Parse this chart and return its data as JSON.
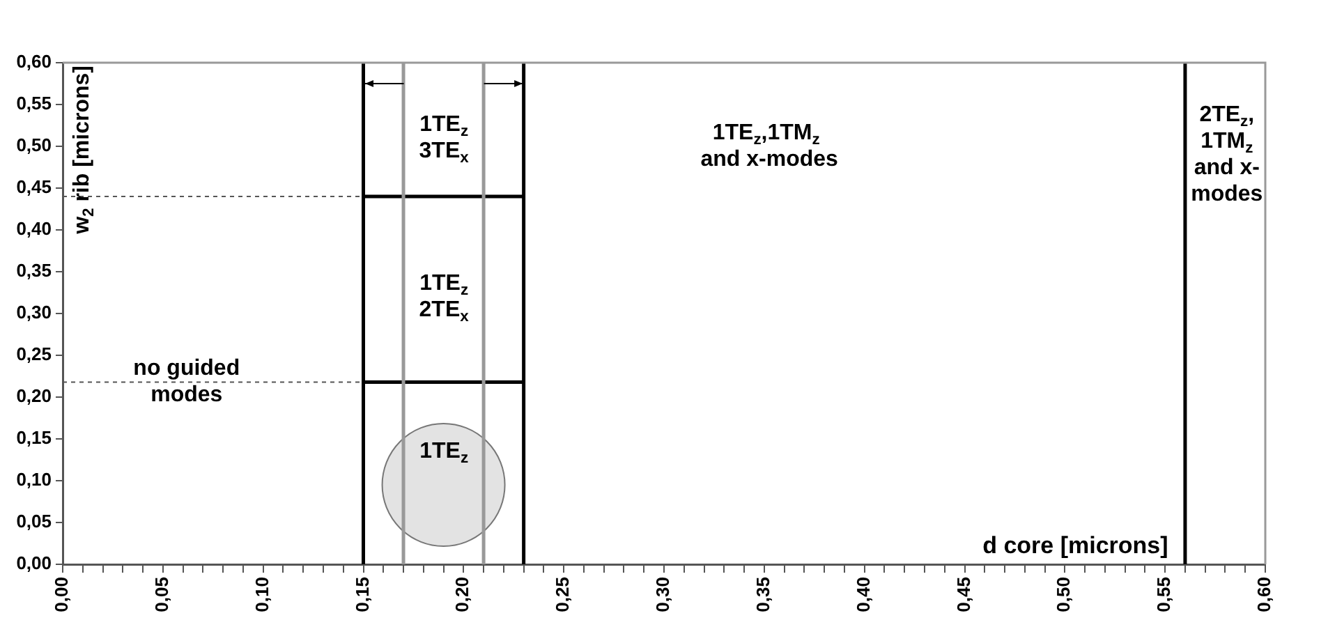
{
  "chart_data": {
    "type": "line",
    "xlabel": "d core [microns]",
    "ylabel": "w$_{2}$ rib [microns]",
    "xlim": [
      0,
      0.6
    ],
    "ylim": [
      0,
      0.6
    ],
    "xticks": [
      {
        "value": 0,
        "label": "0,00"
      },
      {
        "value": 0.01,
        "label": null
      },
      {
        "value": 0.02,
        "label": null
      },
      {
        "value": 0.03,
        "label": null
      },
      {
        "value": 0.04,
        "label": null
      },
      {
        "value": 0.05,
        "label": "0,05"
      },
      {
        "value": 0.06,
        "label": null
      },
      {
        "value": 0.07,
        "label": null
      },
      {
        "value": 0.08,
        "label": null
      },
      {
        "value": 0.09,
        "label": null
      },
      {
        "value": 0.1,
        "label": "0,10"
      },
      {
        "value": 0.11,
        "label": null
      },
      {
        "value": 0.12,
        "label": null
      },
      {
        "value": 0.13,
        "label": null
      },
      {
        "value": 0.14,
        "label": null
      },
      {
        "value": 0.15,
        "label": "0,15"
      },
      {
        "value": 0.16,
        "label": null
      },
      {
        "value": 0.17,
        "label": null
      },
      {
        "value": 0.18,
        "label": null
      },
      {
        "value": 0.19,
        "label": null
      },
      {
        "value": 0.2,
        "label": "0,20"
      },
      {
        "value": 0.21,
        "label": null
      },
      {
        "value": 0.22,
        "label": null
      },
      {
        "value": 0.23,
        "label": null
      },
      {
        "value": 0.24,
        "label": null
      },
      {
        "value": 0.25,
        "label": "0,25"
      },
      {
        "value": 0.26,
        "label": null
      },
      {
        "value": 0.27,
        "label": null
      },
      {
        "value": 0.28,
        "label": null
      },
      {
        "value": 0.29,
        "label": null
      },
      {
        "value": 0.3,
        "label": "0,30"
      },
      {
        "value": 0.31,
        "label": null
      },
      {
        "value": 0.32,
        "label": null
      },
      {
        "value": 0.33,
        "label": null
      },
      {
        "value": 0.34,
        "label": null
      },
      {
        "value": 0.35,
        "label": "0,35"
      },
      {
        "value": 0.36,
        "label": null
      },
      {
        "value": 0.37,
        "label": null
      },
      {
        "value": 0.38,
        "label": null
      },
      {
        "value": 0.39,
        "label": null
      },
      {
        "value": 0.4,
        "label": "0,40"
      },
      {
        "value": 0.41,
        "label": null
      },
      {
        "value": 0.42,
        "label": null
      },
      {
        "value": 0.43,
        "label": null
      },
      {
        "value": 0.44,
        "label": null
      },
      {
        "value": 0.45,
        "label": "0,45"
      },
      {
        "value": 0.46,
        "label": null
      },
      {
        "value": 0.47,
        "label": null
      },
      {
        "value": 0.48,
        "label": null
      },
      {
        "value": 0.49,
        "label": null
      },
      {
        "value": 0.5,
        "label": "0,50"
      },
      {
        "value": 0.51,
        "label": null
      },
      {
        "value": 0.52,
        "label": null
      },
      {
        "value": 0.53,
        "label": null
      },
      {
        "value": 0.54,
        "label": null
      },
      {
        "value": 0.55,
        "label": "0,55"
      },
      {
        "value": 0.56,
        "label": null
      },
      {
        "value": 0.57,
        "label": null
      },
      {
        "value": 0.58,
        "label": null
      },
      {
        "value": 0.59,
        "label": null
      },
      {
        "value": 0.6,
        "label": "0,60"
      }
    ],
    "yticks": [
      {
        "value": 0,
        "label": "0,00"
      },
      {
        "value": 0.05,
        "label": "0,05"
      },
      {
        "value": 0.1,
        "label": "0,10"
      },
      {
        "value": 0.15,
        "label": "0,15"
      },
      {
        "value": 0.2,
        "label": "0,20"
      },
      {
        "value": 0.25,
        "label": "0,25"
      },
      {
        "value": 0.3,
        "label": "0,30"
      },
      {
        "value": 0.35,
        "label": "0,35"
      },
      {
        "value": 0.4,
        "label": "0,40"
      },
      {
        "value": 0.45,
        "label": "0,45"
      },
      {
        "value": 0.5,
        "label": "0,50"
      },
      {
        "value": 0.55,
        "label": "0,55"
      },
      {
        "value": 0.6,
        "label": "0,60"
      }
    ],
    "grid": false,
    "legend": false,
    "series": [
      {
        "type": "line",
        "color": "#000000",
        "x": [
          0.15,
          0.15
        ],
        "values": [
          0,
          0.6
        ]
      },
      {
        "type": "line",
        "color": "#999999",
        "x": [
          0.17,
          0.17
        ],
        "values": [
          0,
          0.6
        ]
      },
      {
        "type": "line",
        "color": "#999999",
        "x": [
          0.21,
          0.21
        ],
        "values": [
          0,
          0.6
        ]
      },
      {
        "type": "line",
        "color": "#000000",
        "x": [
          0.23,
          0.23
        ],
        "values": [
          0,
          0.6
        ]
      },
      {
        "type": "line",
        "color": "#000000",
        "x": [
          0.56,
          0.56
        ],
        "values": [
          0,
          0.6
        ]
      },
      {
        "type": "line",
        "color": "#000000",
        "x": [
          0.15,
          0.23
        ],
        "values": [
          0.44,
          0.44
        ]
      },
      {
        "type": "line",
        "color": "#000000",
        "x": [
          0.15,
          0.23
        ],
        "values": [
          0.218,
          0.218
        ]
      },
      {
        "type": "line",
        "color": "#555555",
        "line_style": "dashed",
        "x": [
          0,
          0.15
        ],
        "values": [
          0.44,
          0.44
        ]
      },
      {
        "type": "line",
        "color": "#555555",
        "line_style": "dashed",
        "x": [
          0,
          0.15
        ],
        "values": [
          0.218,
          0.218
        ]
      },
      {
        "type": "bubble",
        "color": "#e3e3e3",
        "x": [
          0.19
        ],
        "values": [
          0.095
        ],
        "sizes": [
          1
        ]
      }
    ],
    "annotations": [
      "1TE$_{z}$\n3TE$_{x}$",
      "1TE$_{z}$\n2TE$_{x}$",
      "1TE$_{z}$",
      "no guided\nmodes",
      "1TE$_{z}$,1TM$_{z}$\n and x-modes",
      "2TE$_{z}$,\n1TM$_{z}$\nand x-\nmodes"
    ]
  }
}
